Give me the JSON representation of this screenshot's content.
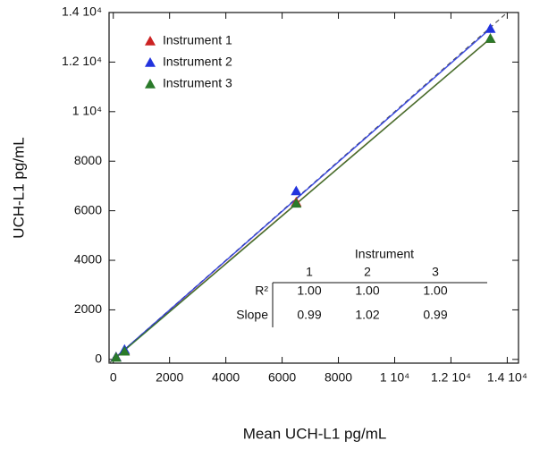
{
  "chart_data": {
    "type": "scatter",
    "x_label": "Mean UCH-L1 pg/mL",
    "y_label": "UCH-L1 pg/mL",
    "x": [
      100,
      400,
      6500,
      13400
    ],
    "series": [
      {
        "name": "Instrument 1",
        "color": "#cc2222",
        "values": [
          100,
          350,
          6350,
          12950
        ]
      },
      {
        "name": "Instrument 2",
        "color": "#2233dd",
        "values": [
          100,
          400,
          6800,
          13350
        ]
      },
      {
        "name": "Instrument 3",
        "color": "#2a7a2a",
        "values": [
          80,
          330,
          6300,
          12950
        ]
      }
    ],
    "xlim": [
      -150,
      14400
    ],
    "ylim": [
      -150,
      14000
    ],
    "xticks": [
      0,
      2000,
      4000,
      6000,
      8000,
      {
        "value": 10000,
        "label": "1 10⁴"
      },
      {
        "value": 12000,
        "label": "1.2 10⁴"
      },
      {
        "value": 14000,
        "label": "1.4 10⁴"
      }
    ],
    "yticks": [
      0,
      2000,
      4000,
      6000,
      8000,
      {
        "value": 10000,
        "label": "1 10⁴"
      },
      {
        "value": 12000,
        "label": "1.2 10⁴"
      },
      {
        "value": 14000,
        "label": "1.4 10⁴"
      }
    ],
    "identity_line": true,
    "fit_lines": true,
    "legend": "upper-left",
    "table": {
      "title": "Instrument",
      "columns": [
        "1",
        "2",
        "3"
      ],
      "rows": [
        {
          "label": "R²",
          "values": [
            "1.00",
            "1.00",
            "1.00"
          ]
        },
        {
          "label": "Slope",
          "values": [
            "0.99",
            "1.02",
            "0.99"
          ]
        }
      ]
    }
  }
}
